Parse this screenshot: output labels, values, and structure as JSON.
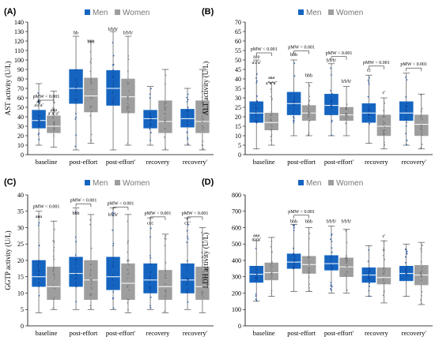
{
  "colors": {
    "men": "#1565C0",
    "women": "#9E9E9E"
  },
  "chart_data": [
    {
      "type": "box",
      "panel": "(A)",
      "ylabel": "AST activity (U/L)",
      "ylim": [
        0,
        140
      ],
      "yticks": [
        0,
        10,
        20,
        30,
        40,
        50,
        60,
        70,
        80,
        90,
        100,
        110,
        120,
        130,
        140
      ],
      "categories": [
        "baseline",
        "post-effort",
        "post-effort'",
        "recovery",
        "recovery'"
      ],
      "legend": [
        "Men",
        "Women"
      ],
      "series": [
        {
          "name": "Men",
          "boxes": [
            {
              "min": 10,
              "q1": 28,
              "median": 36,
              "q3": 47,
              "max": 75
            },
            {
              "min": 5,
              "q1": 54,
              "median": 70,
              "q3": 90,
              "max": 125
            },
            {
              "min": 5,
              "q1": 52,
              "median": 70,
              "q3": 89,
              "max": 130
            },
            {
              "min": 10,
              "q1": 28,
              "median": 38,
              "q3": 47,
              "max": 72
            },
            {
              "min": 10,
              "q1": 29,
              "median": 38,
              "q3": 48,
              "max": 70
            }
          ]
        },
        {
          "name": "Women",
          "boxes": [
            {
              "min": 8,
              "q1": 23,
              "median": 30,
              "q3": 41,
              "max": 67
            },
            {
              "min": 12,
              "q1": 45,
              "median": 62,
              "q3": 81,
              "max": 120
            },
            {
              "min": 10,
              "q1": 44,
              "median": 61,
              "q3": 80,
              "max": 125
            },
            {
              "min": 5,
              "q1": 23,
              "median": 35,
              "q3": 57,
              "max": 90
            },
            {
              "min": 5,
              "q1": 23,
              "median": 35,
              "q3": 57,
              "max": 90
            }
          ]
        }
      ],
      "annotations": [
        {
          "cat": 0,
          "side": "mid",
          "text": "pMW < 0.001",
          "bracket": true,
          "y": 60
        },
        {
          "cat": 0,
          "side": "men",
          "text": "aa",
          "y": 55
        },
        {
          "cat": 0,
          "side": "men",
          "text": "a'a'a'",
          "y": 51
        },
        {
          "cat": 0,
          "side": "women",
          "text": "aaa",
          "y": 46
        },
        {
          "cat": 0,
          "side": "women",
          "text": "a''a''a''",
          "y": 42
        },
        {
          "cat": 1,
          "side": "men",
          "text": "bb",
          "y": 127
        },
        {
          "cat": 1,
          "side": "women",
          "text": "bbb",
          "y": 118
        },
        {
          "cat": 2,
          "side": "men",
          "text": "b'b'b'",
          "y": 131
        },
        {
          "cat": 2,
          "side": "women",
          "text": "b'b'b'",
          "y": 127
        }
      ]
    },
    {
      "type": "box",
      "panel": "(B)",
      "ylabel": "ALT activity (U/L)",
      "ylim": [
        0,
        70
      ],
      "yticks": [
        0,
        5,
        10,
        15,
        20,
        25,
        30,
        35,
        40,
        45,
        50,
        55,
        60,
        65,
        70
      ],
      "categories": [
        "baseline",
        "post-effort",
        "post-effort'",
        "recovery",
        "recovery'"
      ],
      "legend": [
        "Men",
        "Women"
      ],
      "series": [
        {
          "name": "Men",
          "boxes": [
            {
              "min": 3,
              "q1": 17,
              "median": 22,
              "q3": 28,
              "max": 50
            },
            {
              "min": 10,
              "q1": 21,
              "median": 27,
              "q3": 33,
              "max": 50
            },
            {
              "min": 10,
              "q1": 21,
              "median": 26,
              "q3": 32,
              "max": 48
            },
            {
              "min": 6,
              "q1": 17,
              "median": 22,
              "q3": 27,
              "max": 42
            },
            {
              "min": 5,
              "q1": 18,
              "median": 22,
              "q3": 28,
              "max": 43
            }
          ]
        },
        {
          "name": "Women",
          "boxes": [
            {
              "min": 5,
              "q1": 13,
              "median": 17,
              "q3": 22,
              "max": 38
            },
            {
              "min": 10,
              "q1": 18,
              "median": 22,
              "q3": 26,
              "max": 38
            },
            {
              "min": 10,
              "q1": 18,
              "median": 21,
              "q3": 25,
              "max": 36
            },
            {
              "min": 3,
              "q1": 10,
              "median": 15,
              "q3": 21,
              "max": 30
            },
            {
              "min": 3,
              "q1": 10,
              "median": 16,
              "q3": 21,
              "max": 32
            }
          ]
        }
      ],
      "annotations": [
        {
          "cat": 0,
          "side": "mid",
          "text": "pMW < 0.001",
          "bracket": true,
          "y": 55
        },
        {
          "cat": 0,
          "side": "men",
          "text": "aaa",
          "y": 51
        },
        {
          "cat": 0,
          "side": "men",
          "text": "a'a'a'",
          "y": 48
        },
        {
          "cat": 0,
          "side": "women",
          "text": "aaa",
          "y": 40
        },
        {
          "cat": 0,
          "side": "women",
          "text": "a''a''a''",
          "y": 37
        },
        {
          "cat": 1,
          "side": "mid",
          "text": "pMW < 0.001",
          "bracket": true,
          "y": 56
        },
        {
          "cat": 1,
          "side": "men",
          "text": "bbb",
          "y": 52
        },
        {
          "cat": 1,
          "side": "women",
          "text": "bbb",
          "y": 41
        },
        {
          "cat": 2,
          "side": "mid",
          "text": "pMW < 0.001",
          "bracket": true,
          "y": 53
        },
        {
          "cat": 2,
          "side": "men",
          "text": "b'b'b'",
          "y": 49
        },
        {
          "cat": 2,
          "side": "women",
          "text": "b'b'b'",
          "y": 38
        },
        {
          "cat": 3,
          "side": "mid",
          "text": "pMW < 0.001",
          "bracket": true,
          "y": 48
        },
        {
          "cat": 3,
          "side": "men",
          "text": "cc",
          "y": 44
        },
        {
          "cat": 3,
          "side": "women",
          "text": "c'",
          "y": 32
        },
        {
          "cat": 4,
          "side": "mid",
          "text": "pMW < 0.001",
          "bracket": true,
          "y": 47
        }
      ]
    },
    {
      "type": "box",
      "panel": "(C)",
      "ylabel": "GGTP activity (U/L)",
      "ylim": [
        0,
        40
      ],
      "yticks": [
        0,
        5,
        10,
        15,
        20,
        25,
        30,
        35,
        40
      ],
      "categories": [
        "baseline",
        "post-effort",
        "post-effort'",
        "recovery",
        "recovery'"
      ],
      "legend": [
        "Men",
        "Women"
      ],
      "series": [
        {
          "name": "Men",
          "boxes": [
            {
              "min": 4,
              "q1": 12,
              "median": 15,
              "q3": 20,
              "max": 35
            },
            {
              "min": 5,
              "q1": 12,
              "median": 16,
              "q3": 21,
              "max": 36
            },
            {
              "min": 5,
              "q1": 11,
              "median": 15,
              "q3": 21,
              "max": 36
            },
            {
              "min": 5,
              "q1": 10,
              "median": 14,
              "q3": 19,
              "max": 33
            },
            {
              "min": 5,
              "q1": 10,
              "median": 14,
              "q3": 19,
              "max": 33
            }
          ]
        },
        {
          "name": "Women",
          "boxes": [
            {
              "min": 5,
              "q1": 8,
              "median": 12,
              "q3": 18,
              "max": 32
            },
            {
              "min": 5,
              "q1": 8,
              "median": 14,
              "q3": 20,
              "max": 34
            },
            {
              "min": 4,
              "q1": 8,
              "median": 13,
              "q3": 19,
              "max": 34
            },
            {
              "min": 4,
              "q1": 8,
              "median": 12,
              "q3": 17,
              "max": 28
            },
            {
              "min": 4,
              "q1": 8,
              "median": 12,
              "q3": 18,
              "max": 30
            }
          ]
        }
      ],
      "annotations": [
        {
          "cat": 0,
          "side": "mid",
          "text": "pMW < 0.001",
          "bracket": false,
          "y": 36
        },
        {
          "cat": 0,
          "side": "men",
          "text": "aaa",
          "y": 33
        },
        {
          "cat": 1,
          "side": "mid",
          "text": "pMW < 0.001",
          "bracket": true,
          "y": 38
        },
        {
          "cat": 1,
          "side": "men",
          "text": "bbb",
          "y": 34
        },
        {
          "cat": 2,
          "side": "mid",
          "text": "pMW < 0.001",
          "bracket": true,
          "y": 37
        },
        {
          "cat": 2,
          "side": "men",
          "text": "b'b'b'",
          "y": 33.5
        },
        {
          "cat": 3,
          "side": "mid",
          "text": "pMW < 0.001",
          "bracket": true,
          "y": 34
        },
        {
          "cat": 3,
          "side": "men",
          "text": "ccc",
          "y": 31
        },
        {
          "cat": 4,
          "side": "mid",
          "text": "pMW < 0.001",
          "bracket": true,
          "y": 34
        },
        {
          "cat": 4,
          "side": "men",
          "text": "c'c'",
          "y": 31
        }
      ]
    },
    {
      "type": "box",
      "panel": "(D)",
      "ylabel": "LDH activity (U/L)",
      "ylim": [
        0,
        800
      ],
      "yticks": [
        0,
        100,
        200,
        300,
        400,
        500,
        600,
        700,
        800
      ],
      "categories": [
        "baseline",
        "post-effort",
        "post-effort'",
        "recovery",
        "recovery'"
      ],
      "legend": [
        "Men",
        "Women"
      ],
      "series": [
        {
          "name": "Men",
          "boxes": [
            {
              "min": 150,
              "q1": 265,
              "median": 315,
              "q3": 365,
              "max": 520
            },
            {
              "min": 210,
              "q1": 350,
              "median": 390,
              "q3": 440,
              "max": 620
            },
            {
              "min": 200,
              "q1": 340,
              "median": 380,
              "q3": 430,
              "max": 610
            },
            {
              "min": 180,
              "q1": 265,
              "median": 310,
              "q3": 355,
              "max": 490
            },
            {
              "min": 180,
              "q1": 275,
              "median": 320,
              "q3": 365,
              "max": 500
            }
          ]
        },
        {
          "name": "Women",
          "boxes": [
            {
              "min": 180,
              "q1": 280,
              "median": 325,
              "q3": 385,
              "max": 540
            },
            {
              "min": 210,
              "q1": 320,
              "median": 375,
              "q3": 425,
              "max": 600
            },
            {
              "min": 200,
              "q1": 300,
              "median": 360,
              "q3": 415,
              "max": 590
            },
            {
              "min": 140,
              "q1": 255,
              "median": 295,
              "q3": 355,
              "max": 520
            },
            {
              "min": 130,
              "q1": 250,
              "median": 310,
              "q3": 370,
              "max": 510
            }
          ]
        }
      ],
      "annotations": [
        {
          "cat": 0,
          "side": "men",
          "text": "aaa",
          "y": 545
        },
        {
          "cat": 0,
          "side": "men",
          "text": "a'a'a'",
          "y": 520
        },
        {
          "cat": 1,
          "side": "mid",
          "text": "pMW < 0.001",
          "bracket": true,
          "y": 690
        },
        {
          "cat": 1,
          "side": "men",
          "text": "bbb",
          "y": 630
        },
        {
          "cat": 1,
          "side": "women",
          "text": "bbb",
          "y": 630
        },
        {
          "cat": 2,
          "side": "men",
          "text": "b'b'b'",
          "y": 630
        },
        {
          "cat": 2,
          "side": "women",
          "text": "b'b'b'",
          "y": 630
        },
        {
          "cat": 3,
          "side": "women",
          "text": "c'",
          "y": 540
        }
      ]
    }
  ]
}
